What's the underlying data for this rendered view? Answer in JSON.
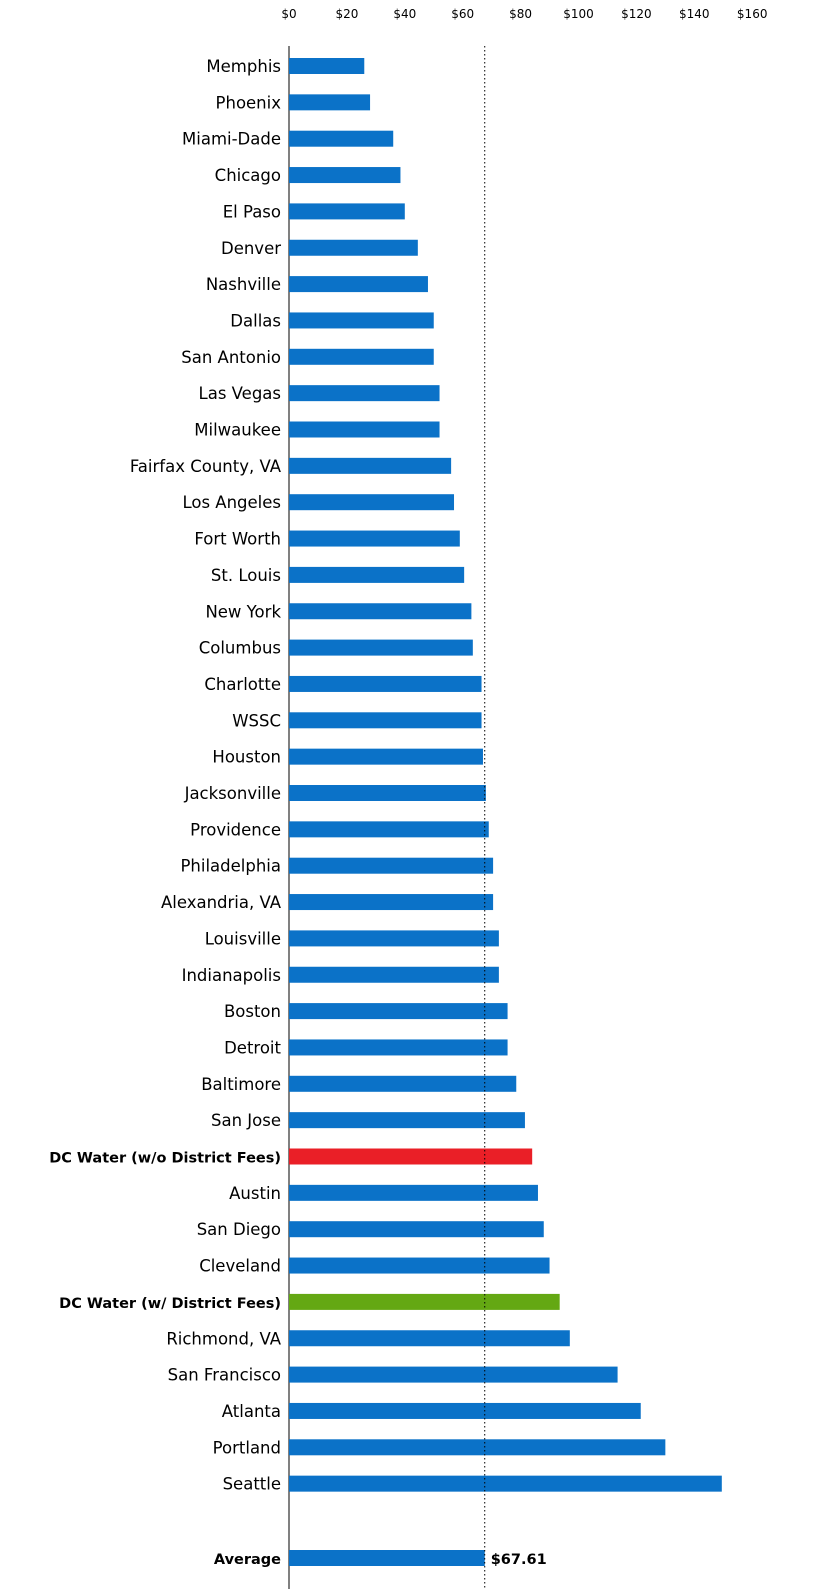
{
  "chart_data": {
    "type": "bar",
    "orientation": "horizontal",
    "title": "",
    "xlabel": "",
    "ylabel": "",
    "xlim": [
      0,
      160
    ],
    "x_ticks": [
      "$0",
      "$20",
      "$40",
      "$60",
      "$80",
      "$100",
      "$120",
      "$140",
      "$160"
    ],
    "tick_axis_position": "top",
    "grid": false,
    "reference_line": {
      "value": 67.61,
      "style": "dotted",
      "label": "$67.61"
    },
    "colors": {
      "default": "#0b72c8",
      "dc_without_fees": "#ea1f27",
      "dc_with_fees": "#64a813"
    },
    "bars": [
      {
        "label": "Memphis",
        "value": 26
      },
      {
        "label": "Phoenix",
        "value": 28
      },
      {
        "label": "Miami-Dade",
        "value": 36
      },
      {
        "label": "Chicago",
        "value": 38.5
      },
      {
        "label": "El Paso",
        "value": 40
      },
      {
        "label": "Denver",
        "value": 44.5
      },
      {
        "label": "Nashville",
        "value": 48
      },
      {
        "label": "Dallas",
        "value": 50
      },
      {
        "label": "San Antonio",
        "value": 50
      },
      {
        "label": "Las Vegas",
        "value": 52
      },
      {
        "label": "Milwaukee",
        "value": 52
      },
      {
        "label": "Fairfax County, VA",
        "value": 56
      },
      {
        "label": "Los Angeles",
        "value": 57
      },
      {
        "label": "Fort Worth",
        "value": 59
      },
      {
        "label": "St. Louis",
        "value": 60.5
      },
      {
        "label": "New York",
        "value": 63
      },
      {
        "label": "Columbus",
        "value": 63.5
      },
      {
        "label": "Charlotte",
        "value": 66.5
      },
      {
        "label": "WSSC",
        "value": 66.5
      },
      {
        "label": "Houston",
        "value": 67
      },
      {
        "label": "Jacksonville",
        "value": 68
      },
      {
        "label": "Providence",
        "value": 69
      },
      {
        "label": "Philadelphia",
        "value": 70.5
      },
      {
        "label": "Alexandria, VA",
        "value": 70.5
      },
      {
        "label": "Louisville",
        "value": 72.5
      },
      {
        "label": "Indianapolis",
        "value": 72.5
      },
      {
        "label": "Boston",
        "value": 75.5
      },
      {
        "label": "Detroit",
        "value": 75.5
      },
      {
        "label": "Baltimore",
        "value": 78.5
      },
      {
        "label": "San Jose",
        "value": 81.5
      },
      {
        "label": "DC Water (w/o District Fees)",
        "value": 84,
        "highlight": "dc_without_fees",
        "bold": true
      },
      {
        "label": "Austin",
        "value": 86
      },
      {
        "label": "San Diego",
        "value": 88
      },
      {
        "label": "Cleveland",
        "value": 90
      },
      {
        "label": "DC Water (w/ District Fees)",
        "value": 93.5,
        "highlight": "dc_with_fees",
        "bold": true
      },
      {
        "label": "Richmond, VA",
        "value": 97
      },
      {
        "label": "San Francisco",
        "value": 113.5
      },
      {
        "label": "Atlanta",
        "value": 121.5
      },
      {
        "label": "Portland",
        "value": 130
      },
      {
        "label": "Seattle",
        "value": 149.5
      }
    ],
    "average": {
      "label": "Average",
      "value": 67.61,
      "value_label": "$67.61",
      "bold": true
    }
  }
}
